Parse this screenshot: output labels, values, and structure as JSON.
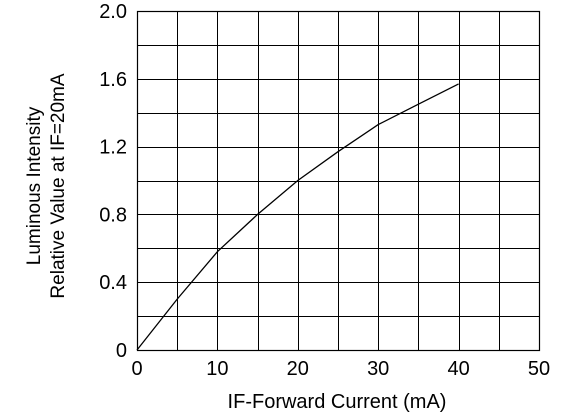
{
  "chart_data": {
    "type": "line",
    "xlabel": "IF-Forward Current (mA)",
    "ylabel_lines": [
      "Luminous Intensity",
      "Relative Value at IF=20mA"
    ],
    "xlim": [
      0,
      50
    ],
    "ylim": [
      0,
      2.0
    ],
    "x_ticks": [
      "0",
      "10",
      "20",
      "30",
      "40",
      "50"
    ],
    "y_ticks": [
      "0",
      "0.4",
      "0.8",
      "1.2",
      "1.6",
      "2.0"
    ],
    "grid": true,
    "series": [
      {
        "x": [
          0,
          5,
          10,
          15,
          20,
          25,
          30,
          35,
          40
        ],
        "y": [
          0,
          0.3,
          0.58,
          0.8,
          1.0,
          1.17,
          1.33,
          1.45,
          1.57
        ]
      }
    ],
    "line_color": "#000000",
    "grid_color": "#000000"
  }
}
